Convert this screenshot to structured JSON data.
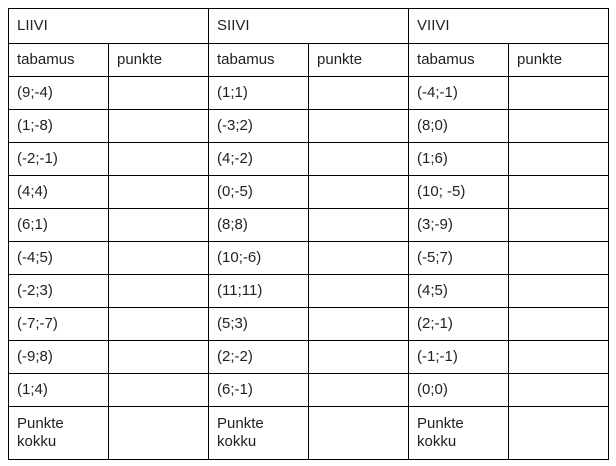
{
  "rounds": [
    {
      "title": "LIIVI",
      "shot_header": "tabamus",
      "points_header": "punkte",
      "shots": [
        "(9;-4)",
        "(1;-8)",
        "(-2;-1)",
        "(4;4)",
        "(6;1)",
        "(-4;5)",
        "(-2;3)",
        "(-7;-7)",
        "(-9;8)",
        "(1;4)"
      ],
      "total_label": "Punkte kokku"
    },
    {
      "title": "SIIVI",
      "shot_header": "tabamus",
      "points_header": "punkte",
      "shots": [
        "(1;1)",
        "(-3;2)",
        "(4;-2)",
        "(0;-5)",
        "(8;8)",
        "(10;-6)",
        "(11;11)",
        "(5;3)",
        "(2;-2)",
        "(6;-1)"
      ],
      "total_label": "Punkte kokku"
    },
    {
      "title": "VIIVI",
      "shot_header": "tabamus",
      "points_header": "punkte",
      "shots": [
        "(-4;-1)",
        "(8;0)",
        "(1;6)",
        "(10; -5)",
        "(3;-9)",
        "(-5;7)",
        "(4;5)",
        "(2;-1)",
        "(-1;-1)",
        "(0;0)"
      ],
      "total_label": "Punkte kokku"
    }
  ]
}
